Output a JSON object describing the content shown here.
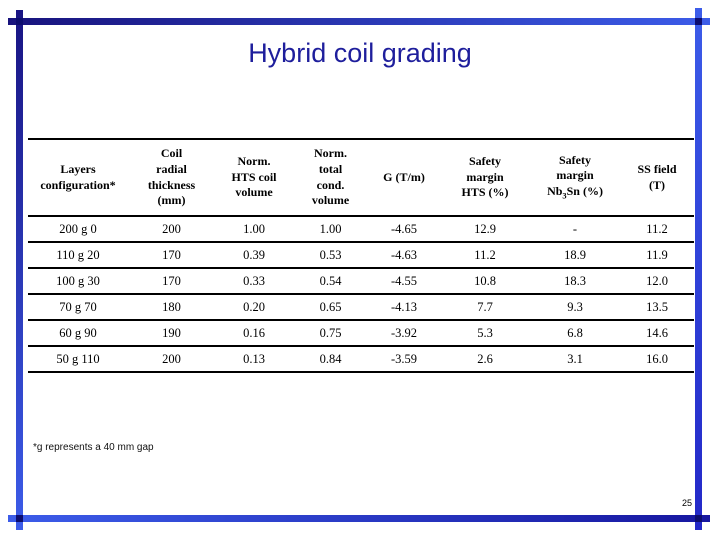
{
  "slide": {
    "title": "Hybrid coil grading",
    "footnote": "*g represents a 40 mm gap",
    "page_number": "25"
  },
  "colors": {
    "title_text": "#1e1e9c",
    "frame_dark_blue": "#18137d",
    "frame_bright_blue": "#3c5ce9",
    "table_rule": "#000000"
  },
  "table": {
    "columns": [
      {
        "label": "Layers configuration*",
        "lines": [
          "Layers",
          "configuration*"
        ]
      },
      {
        "label": "Coil radial thickness (mm)",
        "lines": [
          "Coil",
          "radial",
          "thickness",
          "(mm)"
        ]
      },
      {
        "label": "Norm. HTS coil volume",
        "lines": [
          "Norm.",
          "HTS coil",
          "volume"
        ]
      },
      {
        "label": "Norm. total cond. volume",
        "lines": [
          "Norm.",
          "total",
          "cond.",
          "volume"
        ]
      },
      {
        "label": "G (T/m)",
        "lines": [
          "G (T/m)"
        ]
      },
      {
        "label": "Safety margin HTS (%)",
        "lines": [
          "Safety",
          "margin",
          "HTS (%)"
        ]
      },
      {
        "label": "Safety margin Nb3Sn (%)",
        "lines": [
          "Safety",
          "margin",
          {
            "pre": "Nb",
            "sub": "3",
            "post": "Sn (%)"
          }
        ]
      },
      {
        "label": "SS field (T)",
        "lines": [
          "SS field",
          "(T)"
        ]
      }
    ],
    "rows": [
      [
        "200 g 0",
        "200",
        "1.00",
        "1.00",
        "-4.65",
        "12.9",
        "-",
        "11.2"
      ],
      [
        "110 g 20",
        "170",
        "0.39",
        "0.53",
        "-4.63",
        "11.2",
        "18.9",
        "11.9"
      ],
      [
        "100 g 30",
        "170",
        "0.33",
        "0.54",
        "-4.55",
        "10.8",
        "18.3",
        "12.0"
      ],
      [
        "70 g 70",
        "180",
        "0.20",
        "0.65",
        "-4.13",
        "7.7",
        "9.3",
        "13.5"
      ],
      [
        "60 g 90",
        "190",
        "0.16",
        "0.75",
        "-3.92",
        "5.3",
        "6.8",
        "14.6"
      ],
      [
        "50 g 110",
        "200",
        "0.13",
        "0.84",
        "-3.59",
        "2.6",
        "3.1",
        "16.0"
      ]
    ]
  }
}
